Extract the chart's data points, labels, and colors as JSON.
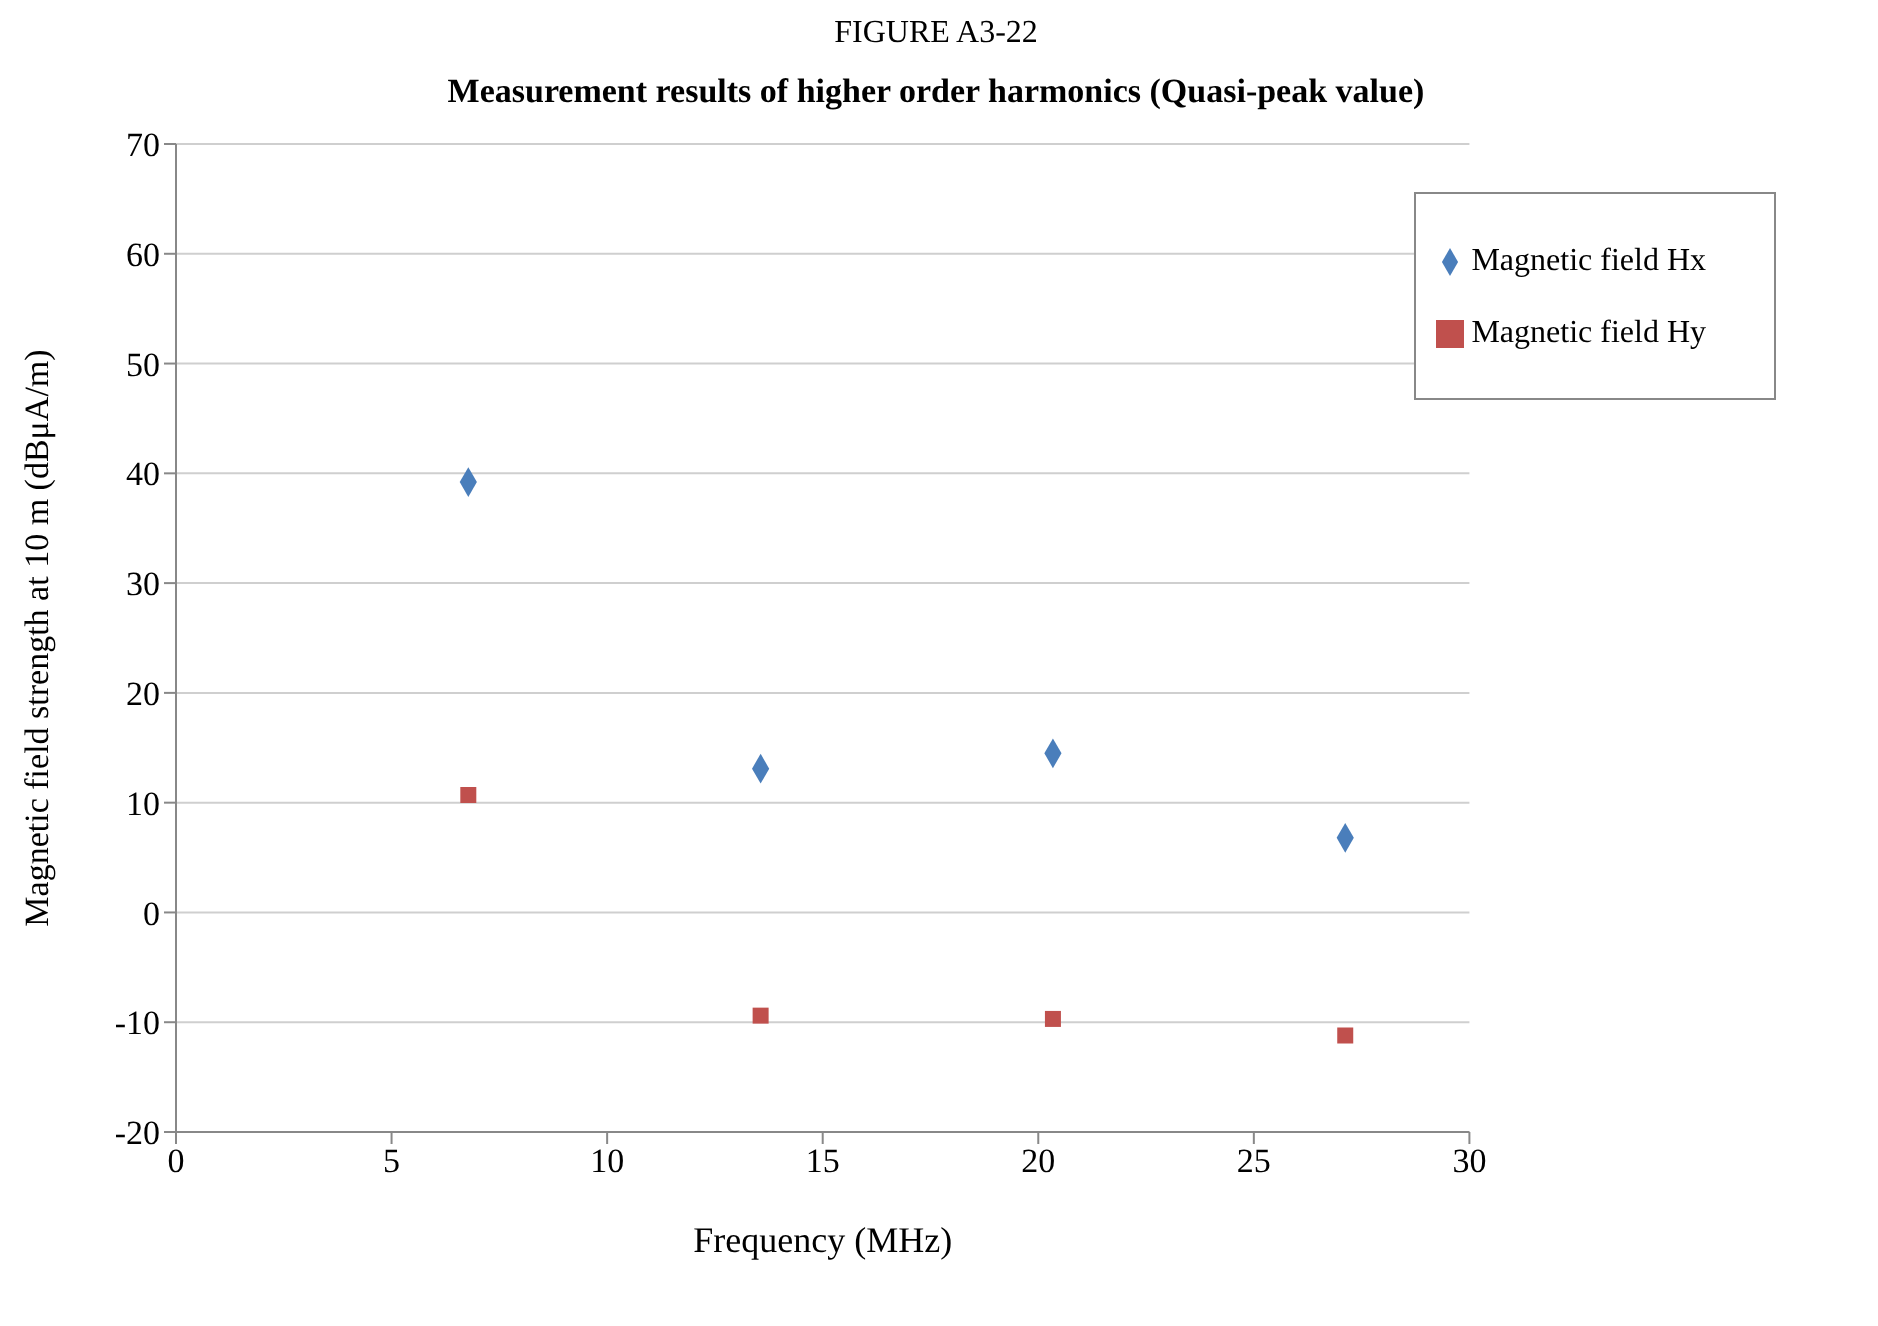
{
  "chart_data": {
    "type": "scatter",
    "title": "FIGURE A3-22",
    "subtitle": "Measurement results of higher order harmonics (Quasi-peak value)",
    "xlabel": "Frequency (MHz)",
    "ylabel": "Magnetic field strength at 10 m (dBμA/m)",
    "x": [
      6.78,
      13.56,
      20.34,
      27.12
    ],
    "series": [
      {
        "name": "Magnetic field Hx",
        "color": "#4a7ebb",
        "marker": "diamond",
        "values": [
          39.2,
          13.1,
          14.5,
          6.8
        ]
      },
      {
        "name": "Magnetic field Hy",
        "color": "#c0504d",
        "marker": "square",
        "values": [
          10.7,
          -9.4,
          -9.7,
          -11.2
        ]
      }
    ],
    "xlim": [
      0,
      30
    ],
    "xticks": [
      0,
      5,
      10,
      15,
      20,
      25,
      30
    ],
    "ylim": [
      -20,
      70
    ],
    "yticks": [
      -20,
      -10,
      0,
      10,
      20,
      30,
      40,
      50,
      60,
      70
    ],
    "grid": "y",
    "legend": "top right"
  }
}
